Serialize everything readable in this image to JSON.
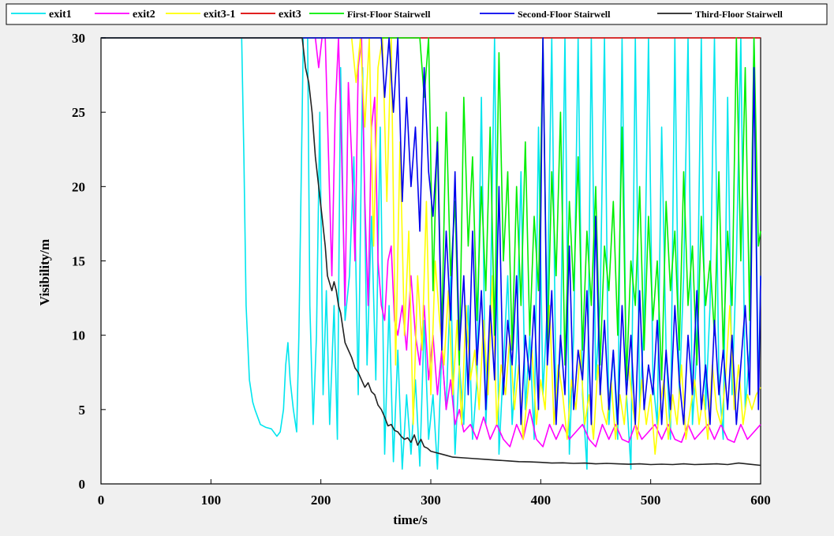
{
  "chart_data": {
    "type": "line",
    "title": "",
    "xlabel": "time/s",
    "ylabel": "Visibility/m",
    "xlim": [
      0,
      600
    ],
    "ylim": [
      0,
      30
    ],
    "x_ticks": [
      0,
      100,
      200,
      300,
      400,
      500,
      600
    ],
    "y_ticks": [
      0,
      5,
      10,
      15,
      20,
      25,
      30
    ],
    "grid": false,
    "legend": "top",
    "series": [
      {
        "name": "exit1",
        "color": "#00e5ee",
        "x": [
          0,
          128,
          130,
          132,
          135,
          138,
          140,
          145,
          150,
          155,
          160,
          163,
          166,
          168,
          170,
          172,
          175,
          178,
          180,
          182,
          184,
          186,
          188,
          190,
          193,
          196,
          199,
          202,
          205,
          208,
          212,
          215,
          218,
          222,
          226,
          230,
          234,
          238,
          242,
          246,
          250,
          254,
          258,
          262,
          266,
          270,
          274,
          278,
          282,
          286,
          290,
          294,
          298,
          302,
          306,
          310,
          314,
          318,
          322,
          326,
          330,
          334,
          338,
          342,
          346,
          350,
          354,
          358,
          362,
          366,
          370,
          374,
          378,
          382,
          386,
          390,
          394,
          398,
          402,
          406,
          410,
          414,
          418,
          422,
          426,
          430,
          434,
          438,
          442,
          446,
          450,
          454,
          458,
          462,
          466,
          470,
          474,
          478,
          482,
          486,
          490,
          494,
          498,
          502,
          506,
          510,
          514,
          518,
          522,
          526,
          530,
          534,
          538,
          542,
          546,
          550,
          554,
          558,
          562,
          566,
          570,
          574,
          578,
          582,
          586,
          590,
          594,
          598,
          600
        ],
        "values": [
          30,
          30,
          22,
          12,
          7,
          5.5,
          5,
          4,
          3.8,
          3.7,
          3.2,
          3.5,
          5,
          8,
          9.5,
          7,
          5,
          3.5,
          10,
          20,
          30,
          30,
          30,
          12,
          4,
          10,
          25,
          6,
          13,
          4,
          12,
          3,
          28,
          11,
          14,
          22,
          6,
          28,
          8,
          18,
          7,
          24,
          2,
          12,
          1.5,
          9,
          1,
          6,
          2,
          7,
          1.2,
          11,
          3,
          6,
          1,
          9,
          5,
          14,
          2,
          8,
          4,
          12,
          3,
          7,
          26,
          4,
          11,
          30,
          2,
          8,
          14,
          4,
          9,
          21,
          5,
          10,
          3,
          24,
          6,
          12,
          30,
          5,
          9,
          30,
          2,
          10,
          30,
          6,
          1,
          30,
          7,
          12,
          30,
          4,
          9,
          3,
          30,
          6,
          1,
          30,
          5,
          11,
          30,
          7,
          4,
          24,
          9,
          3,
          30,
          6,
          14,
          30,
          4,
          9,
          30,
          5,
          12,
          30,
          7,
          3,
          26,
          6,
          15,
          30,
          5,
          9,
          30,
          6,
          14
        ]
      },
      {
        "name": "exit2",
        "color": "#ff00ff",
        "x": [
          0,
          195,
          198,
          201,
          204,
          207,
          210,
          213,
          216,
          219,
          222,
          225,
          228,
          231,
          234,
          237,
          240,
          243,
          246,
          249,
          252,
          255,
          258,
          261,
          264,
          267,
          270,
          274,
          278,
          282,
          286,
          290,
          294,
          298,
          302,
          306,
          310,
          314,
          318,
          322,
          326,
          330,
          336,
          342,
          348,
          354,
          360,
          366,
          372,
          378,
          384,
          390,
          396,
          402,
          408,
          414,
          420,
          426,
          432,
          438,
          444,
          450,
          456,
          462,
          468,
          474,
          480,
          486,
          492,
          498,
          504,
          510,
          516,
          522,
          528,
          534,
          540,
          546,
          552,
          558,
          564,
          570,
          576,
          582,
          588,
          594,
          600
        ],
        "values": [
          30,
          30,
          28,
          30,
          30,
          22,
          14,
          25,
          30,
          22,
          12,
          27,
          22,
          15,
          28,
          30,
          19,
          12,
          24,
          26,
          15,
          12,
          11,
          15,
          16,
          11,
          10,
          12,
          9,
          14,
          10,
          8,
          12,
          7,
          10,
          6,
          9,
          5,
          7,
          4,
          5,
          3.5,
          4,
          3,
          4.5,
          3,
          4,
          3,
          2.5,
          4,
          3,
          5,
          3,
          2.5,
          4,
          3,
          4,
          3,
          3.5,
          4,
          3,
          2.5,
          4,
          3,
          4,
          3,
          2.8,
          4,
          3,
          3.5,
          4,
          3,
          4,
          3,
          2.8,
          4,
          3,
          3.5,
          4,
          3,
          4,
          3,
          2.8,
          4,
          3,
          3.5,
          4
        ]
      },
      {
        "name": "exit3-1",
        "color": "#ffff00",
        "x": [
          0,
          228,
          232,
          236,
          240,
          244,
          248,
          252,
          256,
          260,
          264,
          268,
          272,
          276,
          280,
          284,
          288,
          292,
          296,
          300,
          304,
          308,
          312,
          316,
          320,
          324,
          328,
          332,
          336,
          340,
          344,
          348,
          352,
          356,
          360,
          364,
          368,
          372,
          376,
          380,
          384,
          388,
          392,
          396,
          400,
          404,
          408,
          412,
          416,
          420,
          424,
          428,
          432,
          436,
          440,
          444,
          448,
          452,
          456,
          460,
          464,
          468,
          472,
          476,
          480,
          484,
          488,
          492,
          496,
          500,
          504,
          508,
          512,
          516,
          520,
          524,
          528,
          532,
          536,
          540,
          544,
          548,
          552,
          556,
          560,
          564,
          568,
          572,
          576,
          580,
          584,
          588,
          592,
          596,
          600
        ],
        "values": [
          30,
          30,
          27,
          30,
          24,
          30,
          16,
          28,
          30,
          19,
          30,
          8,
          23,
          10,
          17,
          4,
          14,
          9,
          19,
          6,
          15,
          11,
          8,
          13,
          6,
          11,
          4,
          12,
          7,
          9,
          5,
          11,
          6,
          14,
          4,
          8,
          6,
          10,
          5,
          8,
          3,
          6,
          9,
          4,
          7,
          5,
          12,
          4,
          8,
          6,
          3,
          7,
          5,
          9,
          4,
          6,
          3,
          8,
          5,
          4,
          7,
          3,
          6,
          4,
          8,
          5,
          3,
          7,
          4,
          6,
          2,
          5,
          7,
          3,
          6,
          4,
          8,
          3,
          5,
          7,
          4,
          6,
          3,
          8,
          5,
          4,
          7,
          12,
          5,
          8,
          4,
          6,
          5,
          6,
          6.5
        ]
      },
      {
        "name": "exit3",
        "color": "#dd0000",
        "x": [
          0,
          600
        ],
        "values": [
          30,
          30
        ]
      },
      {
        "name": "First-Floor Stairwell",
        "color": "#00ee00",
        "x": [
          0,
          290,
          294,
          298,
          302,
          306,
          310,
          314,
          318,
          322,
          326,
          330,
          334,
          338,
          342,
          346,
          350,
          354,
          358,
          362,
          366,
          370,
          374,
          378,
          382,
          386,
          390,
          394,
          398,
          402,
          406,
          410,
          414,
          418,
          422,
          426,
          430,
          434,
          438,
          442,
          446,
          450,
          454,
          458,
          462,
          466,
          470,
          474,
          478,
          482,
          486,
          490,
          494,
          498,
          502,
          506,
          510,
          514,
          518,
          522,
          526,
          530,
          534,
          538,
          542,
          546,
          550,
          554,
          558,
          562,
          566,
          570,
          574,
          578,
          582,
          586,
          590,
          594,
          598,
          600
        ],
        "values": [
          30,
          30,
          26,
          30,
          13,
          24,
          10,
          25,
          14,
          19,
          8,
          26,
          16,
          22,
          11,
          20,
          13,
          24,
          10,
          29,
          15,
          21,
          9,
          20,
          12,
          23,
          10,
          18,
          13,
          30,
          9,
          21,
          14,
          25,
          8,
          19,
          13,
          22,
          9,
          17,
          12,
          20,
          8,
          16,
          13,
          19,
          10,
          24,
          7,
          15,
          12,
          20,
          9,
          18,
          11,
          15,
          7,
          19,
          13,
          17,
          9,
          21,
          12,
          16,
          8,
          18,
          12,
          15,
          10,
          21,
          9,
          17,
          12,
          30,
          15,
          28,
          11,
          30,
          16,
          17
        ]
      },
      {
        "name": "Second-Floor Stairwell",
        "color": "#0000ee",
        "x": [
          0,
          255,
          258,
          262,
          266,
          270,
          274,
          278,
          282,
          286,
          290,
          294,
          298,
          302,
          306,
          310,
          314,
          318,
          322,
          326,
          330,
          334,
          338,
          342,
          346,
          350,
          354,
          358,
          362,
          366,
          370,
          374,
          378,
          382,
          386,
          390,
          394,
          398,
          402,
          406,
          410,
          414,
          418,
          422,
          426,
          430,
          434,
          438,
          442,
          446,
          450,
          454,
          458,
          462,
          466,
          470,
          474,
          478,
          482,
          486,
          490,
          494,
          498,
          502,
          506,
          510,
          514,
          518,
          522,
          526,
          530,
          534,
          538,
          542,
          546,
          550,
          554,
          558,
          562,
          566,
          570,
          574,
          578,
          582,
          586,
          590,
          594,
          598,
          600
        ],
        "values": [
          30,
          30,
          26,
          30,
          25,
          30,
          19,
          26,
          20,
          24,
          17,
          28,
          21,
          18,
          23,
          9,
          17,
          11,
          21,
          9,
          14,
          6,
          17,
          8,
          13,
          5,
          12,
          7,
          20,
          6,
          11,
          8,
          14,
          4,
          10,
          7,
          12,
          5,
          30,
          8,
          13,
          4,
          10,
          6,
          16,
          5,
          9,
          7,
          13,
          4,
          18,
          6,
          11,
          5,
          9,
          4,
          12,
          6,
          10,
          4,
          13,
          5,
          8,
          6,
          11,
          4,
          9,
          5,
          12,
          7,
          4,
          10,
          6,
          13,
          5,
          8,
          4,
          11,
          6,
          9,
          5,
          10,
          4,
          8,
          12,
          6,
          28,
          5,
          14
        ]
      },
      {
        "name": "Third-Floor Stairwell",
        "color": "#222222",
        "x": [
          0,
          183,
          186,
          189,
          192,
          195,
          198,
          201,
          204,
          206,
          208,
          210,
          212,
          214,
          216,
          218,
          220,
          222,
          225,
          228,
          231,
          234,
          237,
          240,
          243,
          246,
          249,
          252,
          255,
          258,
          261,
          264,
          267,
          270,
          273,
          276,
          279,
          282,
          285,
          288,
          291,
          294,
          297,
          300,
          305,
          310,
          315,
          320,
          330,
          340,
          350,
          360,
          370,
          380,
          390,
          400,
          410,
          420,
          430,
          440,
          450,
          460,
          470,
          480,
          490,
          500,
          510,
          520,
          530,
          540,
          550,
          560,
          570,
          580,
          590,
          600
        ],
        "values": [
          30,
          30,
          28,
          27,
          25,
          22,
          20,
          18,
          16,
          14,
          13.5,
          13,
          13.6,
          13,
          12,
          11.5,
          10.5,
          9.5,
          9,
          8.5,
          7.8,
          7.5,
          7,
          6.5,
          6.8,
          6.2,
          6,
          5.3,
          5,
          4.5,
          3.9,
          4,
          3.6,
          3.5,
          3.2,
          3,
          3.1,
          2.8,
          3.3,
          2.6,
          3,
          2.5,
          2.4,
          2.2,
          2.1,
          2,
          1.9,
          1.8,
          1.75,
          1.7,
          1.65,
          1.6,
          1.55,
          1.5,
          1.48,
          1.45,
          1.4,
          1.42,
          1.38,
          1.4,
          1.35,
          1.38,
          1.35,
          1.32,
          1.35,
          1.3,
          1.33,
          1.3,
          1.35,
          1.3,
          1.32,
          1.35,
          1.3,
          1.4,
          1.32,
          1.25
        ]
      }
    ]
  }
}
